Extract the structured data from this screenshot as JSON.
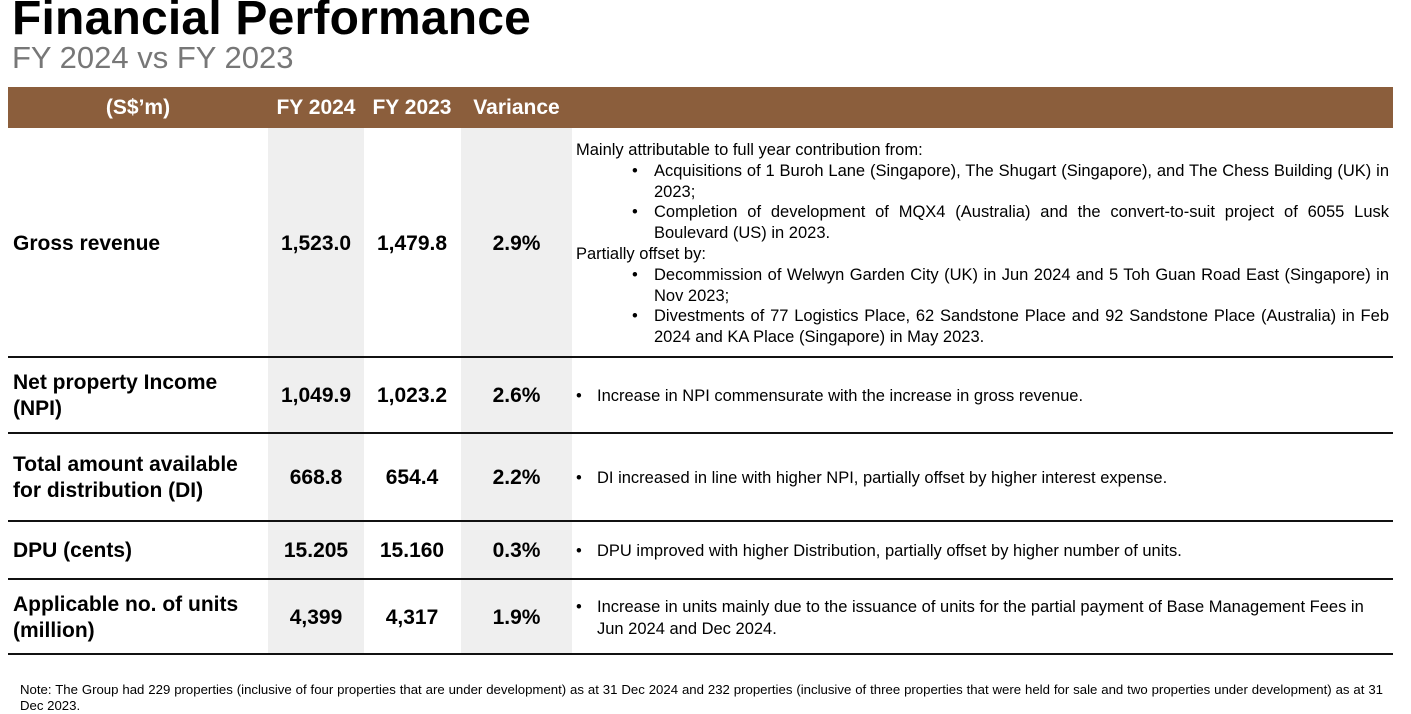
{
  "title": "Financial Performance",
  "subtitle": "FY 2024 vs FY 2023",
  "table": {
    "headers": [
      "(S$’m)",
      "FY 2024",
      "FY 2023",
      "Variance",
      ""
    ],
    "header_color": "#8b5e3c",
    "shade_color": "#efefef",
    "rows": [
      {
        "label": "Gross revenue",
        "fy2024": "1,523.0",
        "fy2023": "1,479.8",
        "variance": "2.9%",
        "comment": {
          "intro1": "Mainly attributable to full year contribution from:",
          "bullets1": [
            "Acquisitions of 1 Buroh Lane (Singapore), The Shugart (Singapore), and The Chess Building (UK) in 2023;",
            "Completion of development of MQX4 (Australia) and the convert-to-suit project of 6055 Lusk Boulevard (US) in 2023."
          ],
          "intro2": "Partially offset by:",
          "bullets2": [
            "Decommission of Welwyn Garden City (UK) in Jun 2024 and 5 Toh Guan Road East (Singapore) in Nov 2023;",
            "Divestments of 77 Logistics Place, 62 Sandstone Place and 92 Sandstone Place (Australia) in Feb 2024 and KA Place (Singapore) in May 2023."
          ]
        }
      },
      {
        "label": "Net property Income (NPI)",
        "fy2024": "1,049.9",
        "fy2023": "1,023.2",
        "variance": "2.6%",
        "comment": "Increase in NPI commensurate with the increase in gross revenue."
      },
      {
        "label": "Total amount available for distribution (DI)",
        "fy2024": "668.8",
        "fy2023": "654.4",
        "variance": "2.2%",
        "comment": "DI increased in line with higher NPI, partially offset by higher interest expense."
      },
      {
        "label": "DPU (cents)",
        "fy2024": "15.205",
        "fy2023": "15.160",
        "variance": "0.3%",
        "comment": "DPU improved with higher Distribution, partially offset by higher number of units."
      },
      {
        "label": "Applicable no. of units (million)",
        "fy2024": "4,399",
        "fy2023": "4,317",
        "variance": "1.9%",
        "comment": "Increase in units mainly due to the issuance of units for the partial payment of Base Management Fees in Jun 2024 and Dec 2024."
      }
    ],
    "bullet_glyph": "•"
  },
  "note": "Note: The Group had 229 properties (inclusive of four properties that are under development) as at 31 Dec 2024 and 232 properties (inclusive of three properties that were held for sale and two properties under development) as at 31 Dec 2023."
}
